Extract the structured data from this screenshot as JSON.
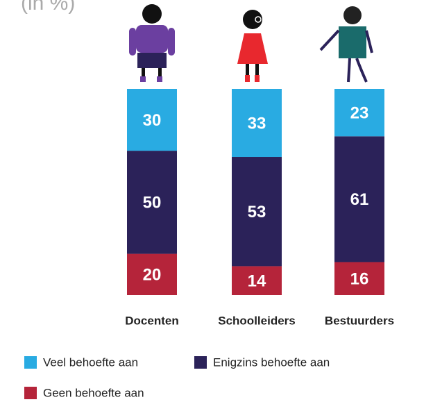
{
  "chart_data": {
    "type": "stacked-bar",
    "title": "(in %)",
    "categories": [
      "Docenten",
      "Schoolleiders",
      "Bestuurders"
    ],
    "series": [
      {
        "name": "Veel behoefte aan",
        "color": "#29abe2",
        "values": [
          30,
          33,
          23
        ]
      },
      {
        "name": "Enigzins behoefte aan",
        "color": "#2b2259",
        "values": [
          50,
          53,
          61
        ]
      },
      {
        "name": "Geen behoefte aan",
        "color": "#b5243a",
        "values": [
          20,
          14,
          16
        ]
      }
    ]
  }
}
